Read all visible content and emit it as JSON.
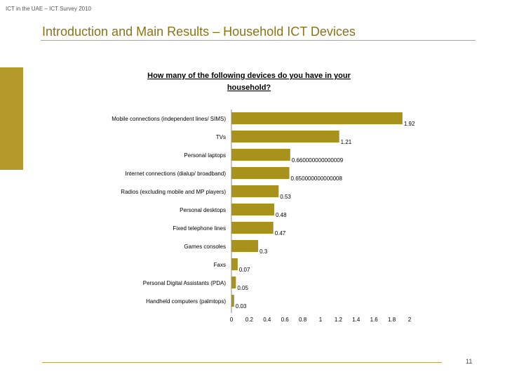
{
  "header": {
    "subtitle": "ICT in the UAE – ICT Survey 2010",
    "title": "Introduction and Main Results – Household ICT Devices"
  },
  "footer": {
    "page_number": "11"
  },
  "colors": {
    "bar": "#a8921c",
    "accent": "#8a7418",
    "rule": "#b9a84c"
  },
  "chart_data": {
    "type": "bar",
    "orientation": "horizontal",
    "title_lines": [
      "How many of the following devices do you have in your",
      "household?"
    ],
    "categories": [
      "Mobile connections (independent lines/ SIMS)",
      "TVs",
      "Personal laptops",
      "Internet connections (dialup/ broadband)",
      "Radios (excluding mobile and MP players)",
      "Personal desktops",
      "Fixed telephone lines",
      "Games consoles",
      "Faxs",
      "Personal Digital Assistants (PDA)",
      "Handheld computers (palmtops)"
    ],
    "values": [
      1.92,
      1.21,
      0.66,
      0.65,
      0.53,
      0.48,
      0.47,
      0.3,
      0.07,
      0.05,
      0.03
    ],
    "value_labels": [
      "1.92",
      "1.21",
      "0.660000000000009",
      "0.650000000000008",
      "0.53",
      "0.48",
      "0.47",
      "0.3",
      "0.07",
      "0.05",
      "0.03"
    ],
    "xlim": [
      0,
      2
    ],
    "xticks": [
      "0",
      "0.2",
      "0.4",
      "0.6",
      "0.8",
      "1",
      "1.2",
      "1.4",
      "1.6",
      "1.8",
      "2"
    ],
    "grid": false,
    "legend": "none"
  }
}
